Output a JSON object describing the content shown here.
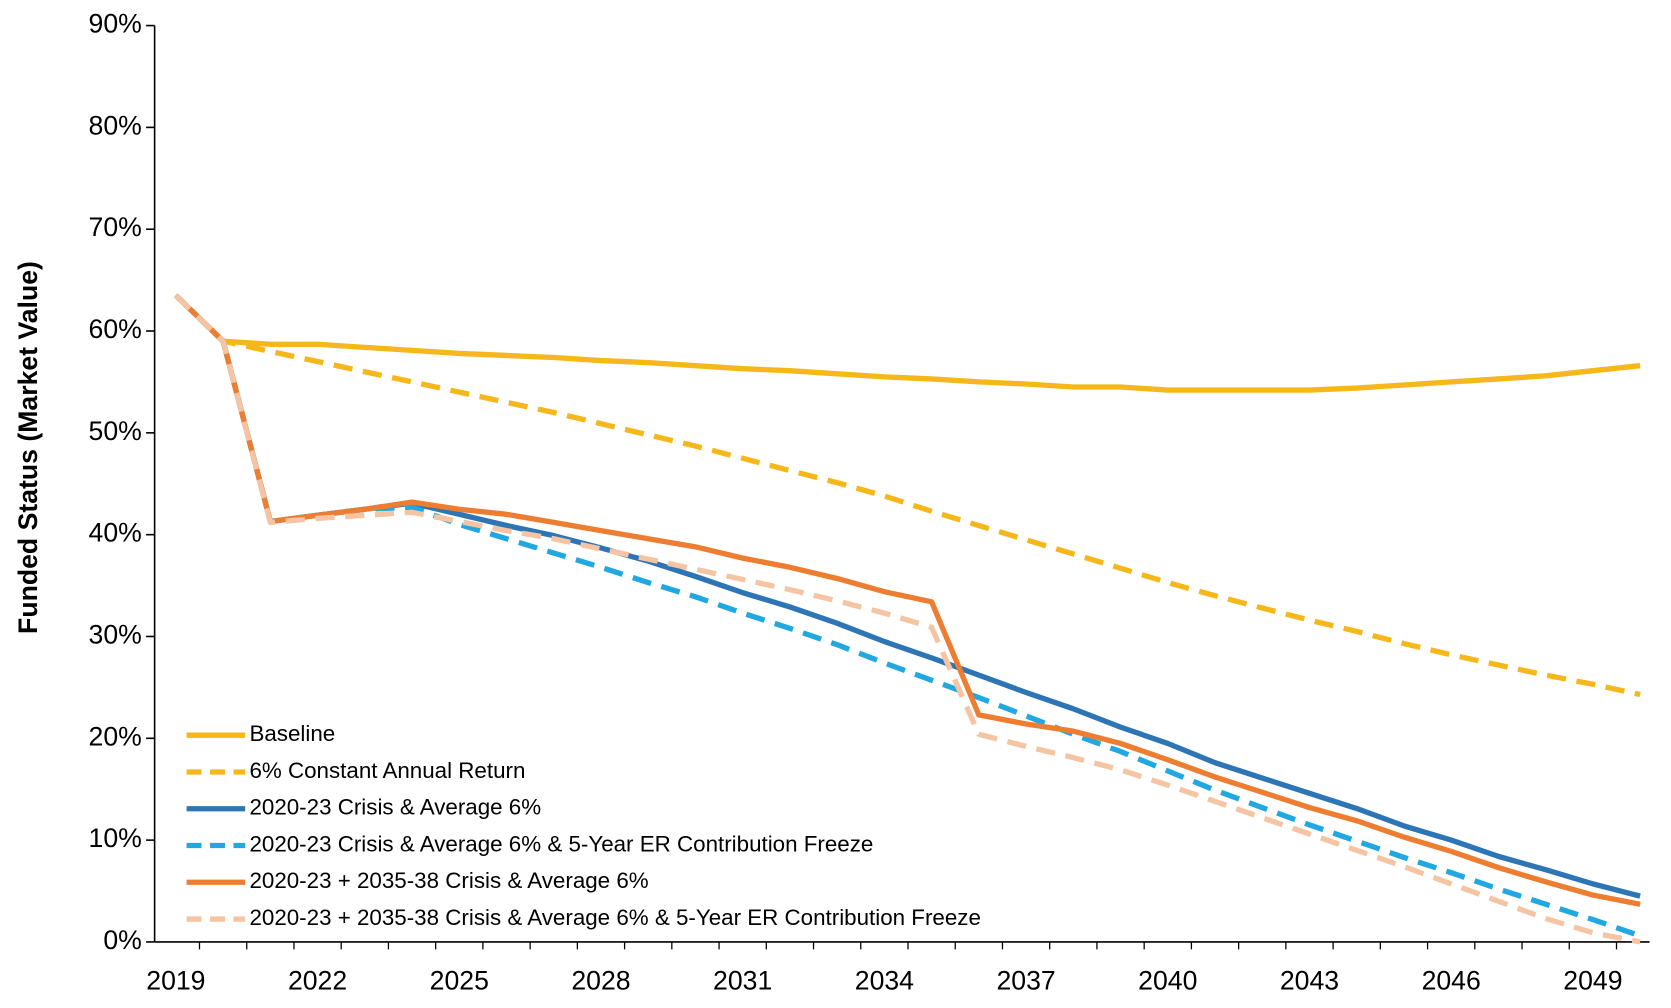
{
  "chart_data": {
    "type": "line",
    "y_label": "Funded Status (Market Value)",
    "x": [
      2019,
      2020,
      2021,
      2022,
      2023,
      2024,
      2025,
      2026,
      2027,
      2028,
      2029,
      2030,
      2031,
      2032,
      2033,
      2034,
      2035,
      2036,
      2037,
      2038,
      2039,
      2040,
      2041,
      2042,
      2043,
      2044,
      2045,
      2046,
      2047,
      2048,
      2049,
      2050
    ],
    "xlim": [
      2018.55,
      2050.2
    ],
    "xticks": [
      2019,
      2022,
      2025,
      2028,
      2031,
      2034,
      2037,
      2040,
      2043,
      2046,
      2049
    ],
    "ylim": [
      0,
      90
    ],
    "yticks": [
      {
        "value": 0,
        "label": "0%"
      },
      {
        "value": 10,
        "label": "10%"
      },
      {
        "value": 20,
        "label": "20%"
      },
      {
        "value": 30,
        "label": "30%"
      },
      {
        "value": 40,
        "label": "40%"
      },
      {
        "value": 50,
        "label": "50%"
      },
      {
        "value": 60,
        "label": "60%"
      },
      {
        "value": 70,
        "label": "70%"
      },
      {
        "value": 80,
        "label": "80%"
      },
      {
        "value": 90,
        "label": "90%"
      }
    ],
    "grid": false,
    "legend": "lower left",
    "series": [
      {
        "name": "Baseline",
        "color": "#f5b71a",
        "dashed": false,
        "values": [
          63.5,
          59,
          58.7,
          58.7,
          58.4,
          58.1,
          57.8,
          57.6,
          57.4,
          57.1,
          56.9,
          56.6,
          56.3,
          56.1,
          55.8,
          55.5,
          55.3,
          55.0,
          54.8,
          54.5,
          54.5,
          54.2,
          54.2,
          54.2,
          54.2,
          54.4,
          54.7,
          55.0,
          55.3,
          55.6,
          56.1,
          56.6
        ]
      },
      {
        "name": "6% Constant Annual Return",
        "color": "#f5b71a",
        "dashed": true,
        "values": [
          63.5,
          59,
          58.0,
          57.0,
          56.0,
          55.0,
          54.0,
          53.0,
          52.0,
          50.9,
          49.8,
          48.7,
          47.5,
          46.3,
          45.1,
          43.8,
          42.3,
          40.9,
          39.5,
          38.1,
          36.7,
          35.3,
          34.0,
          32.8,
          31.6,
          30.5,
          29.3,
          28.2,
          27.2,
          26.2,
          25.3,
          24.3
        ]
      },
      {
        "name": "2020-23 Crisis & Average 6%",
        "color": "#2e75b6",
        "dashed": false,
        "values": [
          63.5,
          59,
          41.3,
          41.9,
          42.5,
          43.1,
          42.0,
          40.9,
          39.9,
          38.7,
          37.4,
          35.9,
          34.3,
          32.9,
          31.3,
          29.5,
          27.9,
          26.2,
          24.5,
          22.9,
          21.1,
          19.5,
          17.6,
          16.1,
          14.6,
          13.1,
          11.4,
          10.0,
          8.4,
          7.1,
          5.7,
          4.5
        ]
      },
      {
        "name": "2020-23 Crisis & Average 6% & 5-Year ER Contribution Freeze",
        "color": "#22a8e0",
        "dashed": true,
        "values": [
          63.5,
          59,
          41.3,
          41.9,
          42.5,
          42.7,
          41.0,
          39.6,
          38.2,
          36.8,
          35.3,
          33.9,
          32.3,
          30.8,
          29.2,
          27.4,
          25.7,
          24.0,
          22.2,
          20.4,
          18.7,
          16.8,
          14.9,
          13.2,
          11.5,
          9.9,
          8.3,
          6.8,
          5.2,
          3.7,
          2.2,
          0.6
        ]
      },
      {
        "name": "2020-23 + 2035-38 Crisis & Average 6%",
        "color": "#ed7d31",
        "dashed": false,
        "values": [
          63.5,
          59,
          41.3,
          41.9,
          42.5,
          43.2,
          42.5,
          42.0,
          41.2,
          40.4,
          39.6,
          38.8,
          37.7,
          36.8,
          35.7,
          34.4,
          33.4,
          22.3,
          21.4,
          20.7,
          19.5,
          17.9,
          16.2,
          14.7,
          13.2,
          11.9,
          10.3,
          8.9,
          7.3,
          5.9,
          4.6,
          3.7
        ]
      },
      {
        "name": "2020-23 + 2035-38 Crisis & Average 6% & 5-Year ER Contribution Freeze",
        "color": "#f4c4a3",
        "dashed": true,
        "values": [
          63.5,
          59,
          41.2,
          41.6,
          41.9,
          42.2,
          41.3,
          40.4,
          39.6,
          38.6,
          37.6,
          36.6,
          35.6,
          34.6,
          33.5,
          32.3,
          30.9,
          20.4,
          19.2,
          18.1,
          16.9,
          15.4,
          13.8,
          12.2,
          10.6,
          9.0,
          7.4,
          5.7,
          4.0,
          2.3,
          0.9,
          0.0
        ]
      }
    ]
  }
}
